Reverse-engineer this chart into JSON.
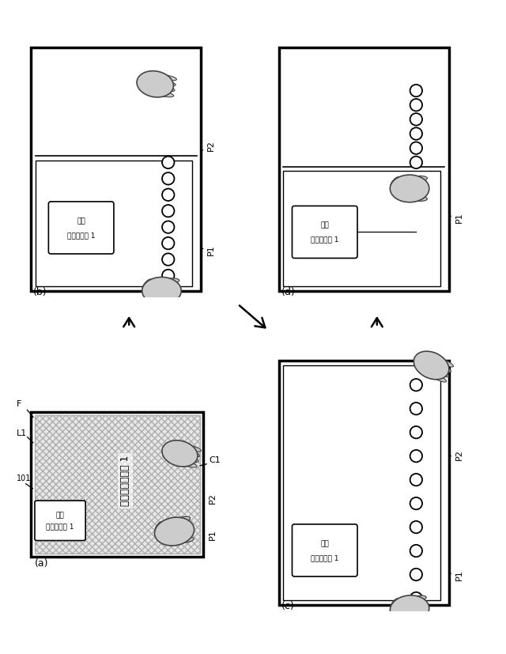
{
  "bg_color": "#ffffff",
  "gray_fill": "#c8c8c8",
  "hatch_fill": "#d0d0d0",
  "label_a": "(a)",
  "label_b": "(b)",
  "label_c": "(c)",
  "label_d": "(d)",
  "text_kiten": "基点",
  "text_contents1": "コンテンツ 1",
  "text_kiten_large": "基点コンテンツ 1",
  "label_F": "F",
  "label_L1": "L1",
  "label_101": "101",
  "label_C1": "C1",
  "label_P1": "P1",
  "label_P2": "P2",
  "coil_color": "#000000",
  "coil_bg": "#ffffff",
  "hand_fill": "#cccccc",
  "hand_edge": "#444444"
}
